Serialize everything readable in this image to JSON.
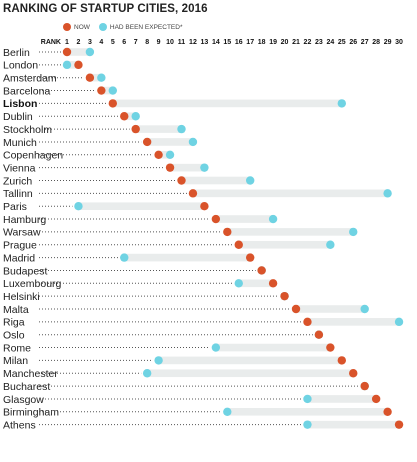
{
  "title": "RANKING OF STARTUP CITIES, 2016",
  "legend": {
    "now": "NOW",
    "expected": "HAD BEEN EXPECTED*"
  },
  "colors": {
    "now": "#d9532a",
    "expected": "#6fd3e3",
    "bar": "#e9ecec",
    "dots": "#555555"
  },
  "chart_data": {
    "type": "scatter",
    "title": "RANKING OF STARTUP CITIES, 2016",
    "xlabel": "RANK",
    "xlim": [
      1,
      30
    ],
    "ticks": [
      1,
      2,
      3,
      4,
      5,
      6,
      7,
      8,
      9,
      10,
      11,
      12,
      13,
      14,
      15,
      16,
      17,
      18,
      19,
      20,
      21,
      22,
      23,
      24,
      25,
      26,
      27,
      28,
      29,
      30
    ],
    "highlight": "Lisbon",
    "series": [
      {
        "name": "NOW",
        "values": [
          1,
          2,
          3,
          4,
          5,
          6,
          7,
          8,
          9,
          10,
          11,
          12,
          13,
          14,
          15,
          16,
          17,
          18,
          19,
          20,
          21,
          22,
          23,
          24,
          25,
          26,
          27,
          28,
          29,
          30
        ]
      },
      {
        "name": "HAD BEEN EXPECTED*",
        "values": [
          3,
          1,
          4,
          5,
          25,
          7,
          11,
          12,
          10,
          13,
          17,
          29,
          2,
          19,
          26,
          24,
          6,
          18,
          16,
          20,
          27,
          30,
          23,
          14,
          9,
          8,
          27,
          22,
          15,
          22
        ]
      }
    ],
    "categories": [
      "Berlin",
      "London",
      "Amsterdam",
      "Barcelona",
      "Lisbon",
      "Dublin",
      "Stockholm",
      "Munich",
      "Copenhagen",
      "Vienna",
      "Zurich",
      "Tallinn",
      "Paris",
      "Hamburg",
      "Warsaw",
      "Prague",
      "Madrid",
      "Budapest",
      "Luxembourg",
      "Helsinki",
      "Malta",
      "Riga",
      "Oslo",
      "Rome",
      "Milan",
      "Manchester",
      "Bucharest",
      "Glasgow",
      "Birmingham",
      "Athens"
    ]
  }
}
